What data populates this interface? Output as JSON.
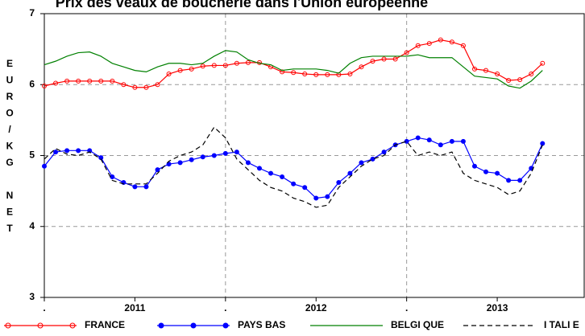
{
  "chart_data": {
    "type": "line",
    "title": "Prix des veaux de boucherie dans l'Union européenne",
    "y_label": "EURO/KG NET",
    "x": [
      2011,
      2011.0625,
      2011.125,
      2011.1875,
      2011.25,
      2011.3125,
      2011.375,
      2011.4375,
      2011.5,
      2011.5625,
      2011.625,
      2011.6875,
      2011.75,
      2011.8125,
      2011.875,
      2011.9375,
      2012,
      2012.0625,
      2012.125,
      2012.1875,
      2012.25,
      2012.3125,
      2012.375,
      2012.4375,
      2012.5,
      2012.5625,
      2012.625,
      2012.6875,
      2012.75,
      2012.8125,
      2012.875,
      2012.9375,
      2013,
      2013.0625,
      2013.125,
      2013.1875,
      2013.25,
      2013.3125,
      2013.375,
      2013.4375,
      2013.5,
      2013.5625,
      2013.625,
      2013.6875,
      2013.75
    ],
    "xlim": [
      2011,
      2013.98
    ],
    "xticks": [
      {
        "value": 2011,
        "label": "."
      },
      {
        "value": 2011.5,
        "label": "2011"
      },
      {
        "value": 2012,
        "label": "."
      },
      {
        "value": 2012.5,
        "label": "2012"
      },
      {
        "value": 2013,
        "label": "."
      },
      {
        "value": 2013.5,
        "label": "2013"
      }
    ],
    "ylim": [
      3,
      7
    ],
    "yticks": [
      3,
      4,
      5,
      6,
      7
    ],
    "grid": true,
    "series": [
      {
        "name": "FRANCE",
        "color": "#ff0000",
        "marker": "open-circle",
        "dash": "solid",
        "values": [
          5.98,
          6.02,
          6.05,
          6.05,
          6.05,
          6.05,
          6.05,
          6.0,
          5.96,
          5.96,
          6.0,
          6.15,
          6.2,
          6.22,
          6.26,
          6.27,
          6.27,
          6.3,
          6.31,
          6.31,
          6.25,
          6.18,
          6.17,
          6.15,
          6.14,
          6.14,
          6.14,
          6.15,
          6.25,
          6.33,
          6.36,
          6.36,
          6.45,
          6.55,
          6.58,
          6.63,
          6.6,
          6.55,
          6.22,
          6.2,
          6.15,
          6.06,
          6.07,
          6.15,
          6.3
        ]
      },
      {
        "name": "PAYS BAS",
        "color": "#0000ff",
        "marker": "dot",
        "dash": "solid",
        "values": [
          4.85,
          5.05,
          5.07,
          5.07,
          5.07,
          4.97,
          4.7,
          4.62,
          4.56,
          4.56,
          4.8,
          4.88,
          4.9,
          4.94,
          4.98,
          5.0,
          5.03,
          5.05,
          4.9,
          4.82,
          4.75,
          4.7,
          4.6,
          4.55,
          4.4,
          4.42,
          4.62,
          4.75,
          4.9,
          4.95,
          5.05,
          5.15,
          5.2,
          5.25,
          5.22,
          5.15,
          5.2,
          5.2,
          4.85,
          4.77,
          4.75,
          4.65,
          4.65,
          4.82,
          5.17
        ]
      },
      {
        "name": "BELGI QUE",
        "color": "#008000",
        "marker": "none",
        "dash": "solid",
        "values": [
          6.28,
          6.33,
          6.4,
          6.45,
          6.46,
          6.4,
          6.3,
          6.25,
          6.2,
          6.18,
          6.25,
          6.3,
          6.3,
          6.28,
          6.3,
          6.4,
          6.48,
          6.46,
          6.35,
          6.3,
          6.28,
          6.2,
          6.22,
          6.22,
          6.22,
          6.2,
          6.16,
          6.3,
          6.38,
          6.4,
          6.4,
          6.4,
          6.4,
          6.42,
          6.38,
          6.38,
          6.38,
          6.25,
          6.12,
          6.1,
          6.08,
          5.98,
          5.95,
          6.05,
          6.2
        ]
      },
      {
        "name": "I TALI E",
        "color": "#000000",
        "marker": "none",
        "dash": "dashed",
        "values": [
          4.95,
          5.1,
          5.02,
          5.0,
          5.05,
          4.95,
          4.65,
          4.6,
          4.6,
          4.6,
          4.75,
          4.92,
          5.0,
          5.05,
          5.15,
          5.4,
          5.25,
          4.95,
          4.8,
          4.65,
          4.55,
          4.5,
          4.4,
          4.35,
          4.27,
          4.3,
          4.55,
          4.7,
          4.85,
          4.95,
          5.0,
          5.15,
          5.2,
          5.0,
          5.05,
          5.0,
          5.05,
          4.75,
          4.65,
          4.6,
          4.55,
          4.45,
          4.5,
          4.75,
          5.15
        ]
      }
    ]
  }
}
